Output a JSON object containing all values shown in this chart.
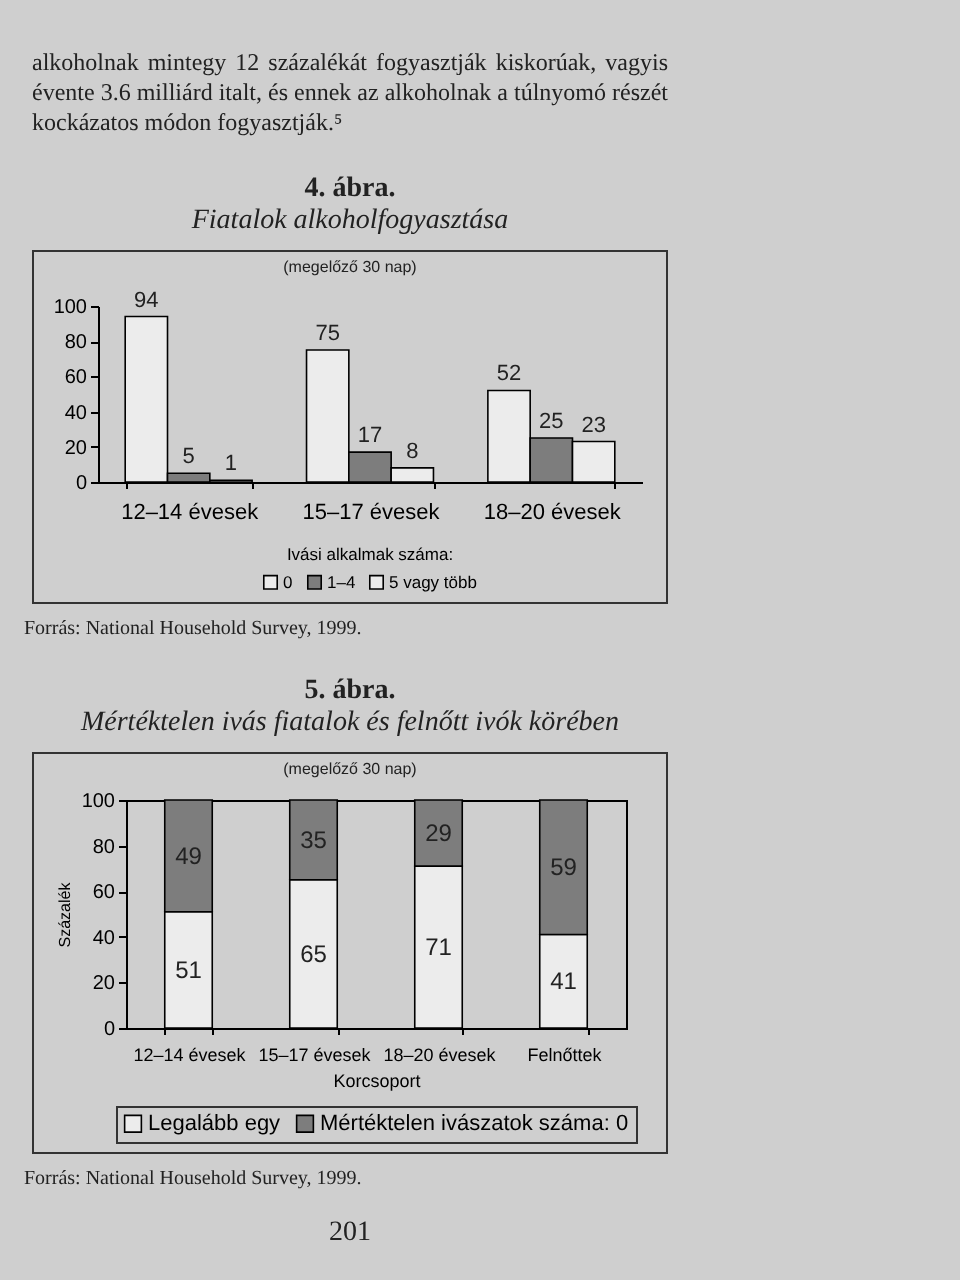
{
  "chart_data": [
    {
      "type": "bar",
      "title": "4. ábra.",
      "subtitle": "Fiatalok alkoholfogyasztása",
      "annotations": [
        "alkoholnak mintegy 12 százalékát fogyasztják kiskorúak, vagyis évente 3.6 milliárd italt, és ennek az alkoholnak a túlnyomó részét kockázatos módon fogyasztják.⁵",
        "(megelőző 30 nap)",
        "Forrás: National Household Survey, 1999."
      ],
      "categories": [
        "12–14 évesek",
        "15–17 évesek",
        "18–20 évesek"
      ],
      "series": [
        {
          "name": "0",
          "color": "#ececec",
          "values": [
            94,
            75,
            52
          ]
        },
        {
          "name": "1–4",
          "color": "#7d7d7d",
          "values": [
            5,
            17,
            25
          ]
        },
        {
          "name": "5 vagy több",
          "color": "#ececec",
          "values": [
            1,
            8,
            23
          ]
        }
      ],
      "legend_title": "Ivási alkalmak száma:",
      "legend": "bottom",
      "ylim": [
        0,
        100
      ],
      "yticks": [
        0,
        20,
        40,
        60,
        80,
        100
      ],
      "data_labels": true
    },
    {
      "type": "bar",
      "stacked": true,
      "title": "5. ábra.",
      "subtitle": "Mértéktelen ivás fiatalok és felnőtt ivók körében",
      "annotations": [
        "(megelőző 30 nap)",
        "Forrás: National Household Survey, 1999.",
        "201"
      ],
      "categories": [
        "12–14 évesek",
        "15–17 évesek",
        "18–20 évesek",
        "Felnőttek"
      ],
      "series": [
        {
          "name": "Legalább egy",
          "color": "#ececec",
          "values": [
            51,
            65,
            71,
            41
          ]
        },
        {
          "name": "Mértéktelen ivászatok száma: 0",
          "color": "#7d7d7d",
          "values": [
            49,
            35,
            29,
            59
          ]
        }
      ],
      "xlabel": "Korcsoport",
      "ylabel": "Százalék",
      "legend": "bottom",
      "ylim": [
        0,
        100
      ],
      "yticks": [
        0,
        20,
        40,
        60,
        80,
        100
      ],
      "data_labels": true
    }
  ]
}
